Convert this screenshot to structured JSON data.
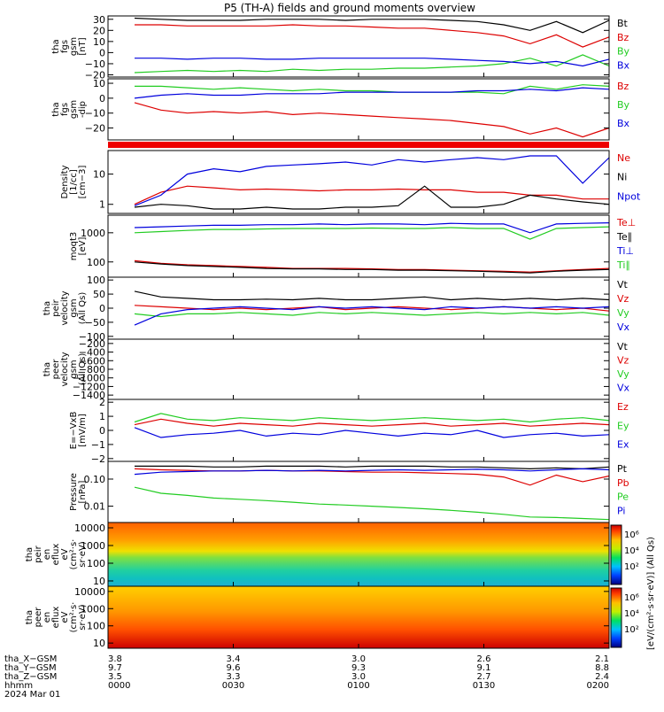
{
  "title": "P5 (TH-A) fields and ground moments overview",
  "colors": {
    "black": "#000000",
    "red": "#dd0000",
    "green": "#22cc22",
    "blue": "#0000dd"
  },
  "chart_data": {
    "type": "line",
    "panels": [
      {
        "ylabel": [
          "tha",
          "fgs",
          "gsm",
          "[nT]"
        ],
        "yticks": [
          "30",
          "20",
          "10",
          "0",
          "−10",
          "−20"
        ],
        "ylim": [
          -22,
          33
        ],
        "legend": [
          {
            "label": "Bt",
            "color": "#000000"
          },
          {
            "label": "Bz",
            "color": "#dd0000"
          },
          {
            "label": "By",
            "color": "#22cc22"
          },
          {
            "label": "Bx",
            "color": "#0000dd"
          }
        ],
        "series": [
          {
            "name": "Bt",
            "color": "#000000",
            "values": [
              31,
              30,
              29,
              29,
              29,
              30,
              30,
              30,
              29,
              30,
              30,
              30,
              29,
              28,
              25,
              20,
              28,
              18,
              29
            ]
          },
          {
            "name": "Bz",
            "color": "#dd0000",
            "values": [
              25,
              25,
              24,
              24,
              24,
              24,
              25,
              24,
              24,
              23,
              22,
              22,
              20,
              18,
              15,
              8,
              16,
              5,
              14
            ]
          },
          {
            "name": "By",
            "color": "#22cc22",
            "values": [
              -18,
              -17,
              -16,
              -17,
              -16,
              -17,
              -15,
              -16,
              -15,
              -15,
              -14,
              -14,
              -13,
              -12,
              -10,
              -5,
              -12,
              -2,
              -12
            ]
          },
          {
            "name": "Bx",
            "color": "#0000dd",
            "values": [
              -5,
              -5,
              -6,
              -5,
              -5,
              -6,
              -6,
              -5,
              -5,
              -5,
              -5,
              -5,
              -6,
              -7,
              -8,
              -10,
              -8,
              -12,
              -6
            ]
          }
        ]
      },
      {
        "ylabel": [
          "tha",
          "fgs",
          "gsm",
          "-dip"
        ],
        "yticks": [
          "10",
          "0",
          "−10",
          "−20"
        ],
        "ylim": [
          -28,
          13
        ],
        "legend": [
          {
            "label": "Bz",
            "color": "#dd0000"
          },
          {
            "label": "By",
            "color": "#22cc22"
          },
          {
            "label": "Bx",
            "color": "#0000dd"
          }
        ],
        "series": [
          {
            "name": "Bz",
            "color": "#dd0000",
            "values": [
              -3,
              -8,
              -10,
              -9,
              -10,
              -9,
              -11,
              -10,
              -11,
              -12,
              -13,
              -14,
              -15,
              -17,
              -19,
              -24,
              -20,
              -26,
              -20
            ]
          },
          {
            "name": "By",
            "color": "#22cc22",
            "values": [
              8,
              8,
              7,
              6,
              7,
              6,
              5,
              6,
              5,
              5,
              4,
              4,
              4,
              4,
              3,
              8,
              6,
              9,
              8
            ]
          },
          {
            "name": "Bx",
            "color": "#0000dd",
            "values": [
              0,
              2,
              3,
              2,
              2,
              3,
              3,
              3,
              4,
              4,
              4,
              4,
              4,
              5,
              5,
              6,
              5,
              7,
              6
            ]
          }
        ]
      },
      {
        "ylabel": [
          "Density",
          "[1/cc]",
          "[cm−3]"
        ],
        "yticks": [
          "10",
          "1"
        ],
        "ylim": [
          0.5,
          60
        ],
        "scale": "log",
        "legend": [
          {
            "label": "Ne",
            "color": "#dd0000"
          },
          {
            "label": "Ni",
            "color": "#000000"
          },
          {
            "label": "Npot",
            "color": "#0000dd"
          }
        ],
        "series": [
          {
            "name": "Ne",
            "color": "#dd0000",
            "values": [
              1.0,
              2.5,
              4.0,
              3.5,
              3.0,
              3.2,
              3.0,
              2.8,
              3.0,
              3.0,
              3.2,
              3.0,
              3.0,
              2.5,
              2.5,
              2.0,
              2.0,
              1.5,
              1.5
            ]
          },
          {
            "name": "Ni",
            "color": "#000000",
            "values": [
              0.8,
              1.0,
              0.9,
              0.7,
              0.7,
              0.8,
              0.7,
              0.7,
              0.8,
              0.8,
              0.9,
              4.0,
              0.8,
              0.8,
              1.0,
              2.0,
              1.5,
              1.2,
              1.0
            ]
          },
          {
            "name": "Npot",
            "color": "#0000dd",
            "values": [
              0.9,
              2.0,
              10,
              15,
              12,
              18,
              20,
              22,
              25,
              20,
              30,
              25,
              30,
              35,
              30,
              40,
              40,
              5,
              35
            ]
          }
        ]
      },
      {
        "ylabel": [
          "moqt3",
          "[eV]"
        ],
        "yticks": [
          "1000",
          "100"
        ],
        "ylim": [
          30,
          4000
        ],
        "scale": "log",
        "legend": [
          {
            "label": "Te⊥",
            "color": "#dd0000"
          },
          {
            "label": "Te∥",
            "color": "#000000"
          },
          {
            "label": "Ti⊥",
            "color": "#0000dd"
          },
          {
            "label": "Ti∥",
            "color": "#22cc22"
          }
        ],
        "series": [
          {
            "name": "Te⊥",
            "color": "#dd0000",
            "values": [
              110,
              90,
              80,
              75,
              70,
              65,
              60,
              60,
              60,
              58,
              55,
              55,
              52,
              50,
              48,
              45,
              50,
              55,
              60
            ]
          },
          {
            "name": "Te∥",
            "color": "#000000",
            "values": [
              100,
              85,
              75,
              70,
              65,
              60,
              58,
              58,
              55,
              55,
              52,
              52,
              50,
              48,
              45,
              42,
              48,
              52,
              55
            ]
          },
          {
            "name": "Ti⊥",
            "color": "#0000dd",
            "values": [
              1500,
              1600,
              1700,
              1800,
              1800,
              1900,
              1900,
              2000,
              1900,
              2000,
              2000,
              1900,
              2100,
              2000,
              2000,
              1000,
              2000,
              2100,
              2200
            ]
          },
          {
            "name": "Ti∥",
            "color": "#22cc22",
            "values": [
              1000,
              1100,
              1200,
              1300,
              1300,
              1350,
              1400,
              1400,
              1400,
              1450,
              1400,
              1400,
              1500,
              1400,
              1400,
              600,
              1400,
              1500,
              1600
            ]
          }
        ]
      },
      {
        "ylabel": [
          "tha",
          "peir",
          "velocity",
          "gsm",
          "(All Qs)"
        ],
        "yticks": [
          "100",
          "50",
          "0",
          "−50",
          "−100"
        ],
        "ylim": [
          -110,
          110
        ],
        "legend": [
          {
            "label": "Vt",
            "color": "#000000"
          },
          {
            "label": "Vz",
            "color": "#dd0000"
          },
          {
            "label": "Vy",
            "color": "#22cc22"
          },
          {
            "label": "Vx",
            "color": "#0000dd"
          }
        ],
        "series": [
          {
            "name": "Vt",
            "color": "#000000",
            "values": [
              60,
              40,
              35,
              30,
              30,
              32,
              30,
              35,
              30,
              30,
              35,
              40,
              30,
              35,
              30,
              35,
              30,
              35,
              30
            ]
          },
          {
            "name": "Vz",
            "color": "#dd0000",
            "values": [
              10,
              5,
              0,
              -5,
              0,
              -5,
              0,
              5,
              -5,
              0,
              5,
              0,
              -5,
              0,
              5,
              0,
              -5,
              0,
              -10
            ]
          },
          {
            "name": "Vy",
            "color": "#22cc22",
            "values": [
              -20,
              -30,
              -20,
              -20,
              -15,
              -20,
              -25,
              -15,
              -20,
              -15,
              -20,
              -25,
              -20,
              -15,
              -20,
              -15,
              -20,
              -15,
              -25
            ]
          },
          {
            "name": "Vx",
            "color": "#0000dd",
            "values": [
              -60,
              -20,
              -5,
              0,
              5,
              0,
              -5,
              5,
              0,
              5,
              0,
              -5,
              5,
              0,
              5,
              0,
              5,
              0,
              5
            ]
          }
        ]
      },
      {
        "ylabel": [
          "tha",
          "peer",
          "velocity",
          "gsm",
          "(All Qs)"
        ],
        "yticks": [
          "−200",
          "−400",
          "−600",
          "−800",
          "−1000",
          "−1200",
          "−1400"
        ],
        "ylim": [
          -1500,
          -100
        ],
        "legend": [
          {
            "label": "Vt",
            "color": "#000000"
          },
          {
            "label": "Vz",
            "color": "#dd0000"
          },
          {
            "label": "Vy",
            "color": "#22cc22"
          },
          {
            "label": "Vx",
            "color": "#0000dd"
          }
        ],
        "series": []
      },
      {
        "ylabel": [
          "E=−VxB",
          "[mV/m]"
        ],
        "yticks": [
          "2",
          "1",
          "0",
          "−1",
          "−2"
        ],
        "ylim": [
          -2.2,
          2.2
        ],
        "legend": [
          {
            "label": "Ez",
            "color": "#dd0000"
          },
          {
            "label": "Ey",
            "color": "#22cc22"
          },
          {
            "label": "Ex",
            "color": "#0000dd"
          }
        ],
        "series": [
          {
            "name": "Ez",
            "color": "#dd0000",
            "values": [
              0.4,
              0.8,
              0.5,
              0.3,
              0.5,
              0.4,
              0.3,
              0.5,
              0.4,
              0.3,
              0.4,
              0.5,
              0.3,
              0.4,
              0.5,
              0.3,
              0.4,
              0.5,
              0.4
            ]
          },
          {
            "name": "Ey",
            "color": "#22cc22",
            "values": [
              0.6,
              1.2,
              0.8,
              0.7,
              0.9,
              0.8,
              0.7,
              0.9,
              0.8,
              0.7,
              0.8,
              0.9,
              0.8,
              0.7,
              0.8,
              0.6,
              0.8,
              0.9,
              0.7
            ]
          },
          {
            "name": "Ex",
            "color": "#0000dd",
            "values": [
              0.2,
              -0.5,
              -0.3,
              -0.2,
              0.0,
              -0.4,
              -0.2,
              -0.3,
              0.0,
              -0.2,
              -0.4,
              -0.2,
              -0.3,
              0.0,
              -0.5,
              -0.3,
              -0.2,
              -0.4,
              -0.3
            ]
          }
        ]
      },
      {
        "ylabel": [
          "Pressure",
          "[nPa]"
        ],
        "yticks": [
          "0.10",
          "0.01"
        ],
        "ylim": [
          0.0025,
          0.45
        ],
        "scale": "log",
        "legend": [
          {
            "label": "Pt",
            "color": "#000000"
          },
          {
            "label": "Pb",
            "color": "#dd0000"
          },
          {
            "label": "Pe",
            "color": "#22cc22"
          },
          {
            "label": "Pi",
            "color": "#0000dd"
          }
        ],
        "series": [
          {
            "name": "Pt",
            "color": "#000000",
            "values": [
              0.3,
              0.3,
              0.3,
              0.28,
              0.28,
              0.3,
              0.3,
              0.3,
              0.28,
              0.3,
              0.3,
              0.3,
              0.28,
              0.28,
              0.26,
              0.24,
              0.26,
              0.24,
              0.28
            ]
          },
          {
            "name": "Pb",
            "color": "#dd0000",
            "values": [
              0.24,
              0.22,
              0.21,
              0.2,
              0.2,
              0.21,
              0.2,
              0.2,
              0.19,
              0.18,
              0.18,
              0.17,
              0.16,
              0.15,
              0.12,
              0.06,
              0.14,
              0.08,
              0.13
            ]
          },
          {
            "name": "Pe",
            "color": "#22cc22",
            "values": [
              0.05,
              0.03,
              0.025,
              0.02,
              0.018,
              0.016,
              0.014,
              0.012,
              0.011,
              0.01,
              0.009,
              0.008,
              0.007,
              0.006,
              0.005,
              0.004,
              0.0038,
              0.0035,
              0.0032
            ]
          },
          {
            "name": "Pi",
            "color": "#0000dd",
            "values": [
              0.15,
              0.18,
              0.19,
              0.2,
              0.2,
              0.21,
              0.2,
              0.21,
              0.2,
              0.21,
              0.22,
              0.21,
              0.22,
              0.23,
              0.22,
              0.2,
              0.22,
              0.24,
              0.22
            ]
          }
        ]
      },
      {
        "ylabel": [
          "tha",
          "peir",
          "en",
          "eflux",
          "eV",
          "(cm²·s·",
          "sr·eV)"
        ],
        "yticks": [
          "10000",
          "1000",
          "100",
          "10"
        ],
        "ylim": [
          5,
          20000
        ],
        "scale": "log",
        "kind": "spectrogram",
        "legend": []
      },
      {
        "ylabel": [
          "tha",
          "peer",
          "en",
          "eflux",
          "eV",
          "(cm²·s·",
          "sr·eV)"
        ],
        "yticks": [
          "10000",
          "1000",
          "100",
          "10"
        ],
        "ylim": [
          5,
          20000
        ],
        "scale": "log",
        "kind": "spectrogram",
        "legend": []
      }
    ],
    "colorbar": {
      "label": "[eV/(cm²·s·sr·eV)] (All Qs)",
      "ticks_upper": [
        "10⁶",
        "10⁴",
        "10²"
      ],
      "ticks_lower": [
        "10⁶",
        "10⁴",
        "10²"
      ]
    },
    "x_axis": {
      "rows": [
        {
          "label": "tha_X−GSM",
          "values": [
            "3.8",
            "3.4",
            "3.0",
            "2.6",
            "2.1"
          ]
        },
        {
          "label": "tha_Y−GSM",
          "values": [
            "9.7",
            "9.6",
            "9.3",
            "9.1",
            "8.8"
          ]
        },
        {
          "label": "tha_Z−GSM",
          "values": [
            "3.5",
            "3.3",
            "3.0",
            "2.7",
            "2.4"
          ]
        },
        {
          "label": "hhmm",
          "values": [
            "0000",
            "0030",
            "0100",
            "0130",
            "0200"
          ]
        }
      ],
      "date": "2024 Mar 01"
    }
  }
}
